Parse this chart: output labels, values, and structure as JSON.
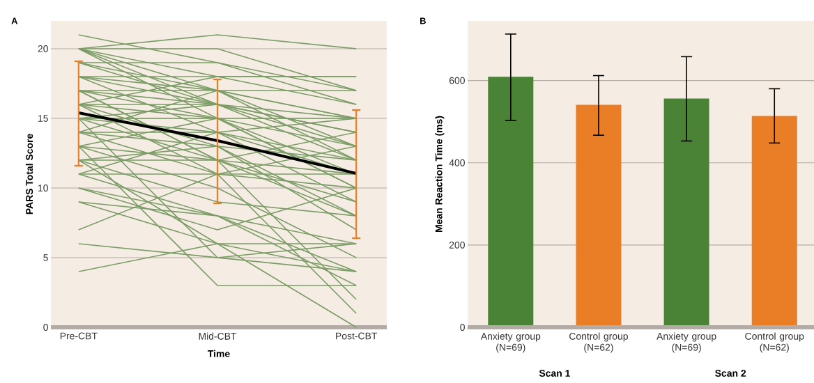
{
  "chart_data": [
    {
      "type": "line",
      "title": "A",
      "xlabel": "Time",
      "ylabel": "PARS Total Score",
      "categories": [
        "Pre-CBT",
        "Mid-CBT",
        "Post-CBT"
      ],
      "ylim": [
        0,
        22
      ],
      "yticks": [
        0,
        5,
        10,
        15,
        20
      ],
      "grid": "y",
      "series": [
        {
          "color": "#7b9c66",
          "values": [
            21,
            19,
            16
          ]
        },
        {
          "color": "#7b9c66",
          "values": [
            20,
            21,
            20
          ]
        },
        {
          "color": "#7b9c66",
          "values": [
            20,
            20,
            17
          ]
        },
        {
          "color": "#7b9c66",
          "values": [
            20,
            18,
            18
          ]
        },
        {
          "color": "#7b9c66",
          "values": [
            20,
            16,
            14
          ]
        },
        {
          "color": "#7b9c66",
          "values": [
            20,
            17,
            12
          ]
        },
        {
          "color": "#7b9c66",
          "values": [
            20,
            15,
            10
          ]
        },
        {
          "color": "#7b9c66",
          "values": [
            19,
            19,
            17
          ]
        },
        {
          "color": "#7b9c66",
          "values": [
            19,
            16,
            15
          ]
        },
        {
          "color": "#7b9c66",
          "values": [
            19,
            17,
            13
          ]
        },
        {
          "color": "#7b9c66",
          "values": [
            18,
            18,
            18
          ]
        },
        {
          "color": "#7b9c66",
          "values": [
            18,
            17,
            15
          ]
        },
        {
          "color": "#7b9c66",
          "values": [
            18,
            16,
            12
          ]
        },
        {
          "color": "#7b9c66",
          "values": [
            18,
            14,
            9
          ]
        },
        {
          "color": "#7b9c66",
          "values": [
            17,
            17,
            15
          ]
        },
        {
          "color": "#7b9c66",
          "values": [
            17,
            16,
            14
          ]
        },
        {
          "color": "#7b9c66",
          "values": [
            17,
            15,
            11
          ]
        },
        {
          "color": "#7b9c66",
          "values": [
            17,
            12,
            8
          ]
        },
        {
          "color": "#7b9c66",
          "values": [
            16,
            18,
            16
          ]
        },
        {
          "color": "#7b9c66",
          "values": [
            16,
            16,
            13
          ]
        },
        {
          "color": "#7b9c66",
          "values": [
            16,
            15,
            10
          ]
        },
        {
          "color": "#7b9c66",
          "values": [
            16,
            13,
            7
          ]
        },
        {
          "color": "#7b9c66",
          "values": [
            15,
            16,
            14
          ]
        },
        {
          "color": "#7b9c66",
          "values": [
            15,
            15,
            15
          ]
        },
        {
          "color": "#7b9c66",
          "values": [
            15,
            14,
            12
          ]
        },
        {
          "color": "#7b9c66",
          "values": [
            15,
            5,
            6
          ]
        },
        {
          "color": "#7b9c66",
          "values": [
            15,
            12,
            9
          ]
        },
        {
          "color": "#7b9c66",
          "values": [
            14,
            17,
            17
          ]
        },
        {
          "color": "#7b9c66",
          "values": [
            14,
            14,
            11
          ]
        },
        {
          "color": "#7b9c66",
          "values": [
            14,
            13,
            8
          ]
        },
        {
          "color": "#7b9c66",
          "values": [
            14,
            11,
            10
          ]
        },
        {
          "color": "#7b9c66",
          "values": [
            13,
            15,
            13
          ]
        },
        {
          "color": "#7b9c66",
          "values": [
            13,
            12,
            11
          ]
        },
        {
          "color": "#7b9c66",
          "values": [
            13,
            10,
            5
          ]
        },
        {
          "color": "#7b9c66",
          "values": [
            12,
            12,
            14
          ]
        },
        {
          "color": "#7b9c66",
          "values": [
            12,
            13,
            12
          ]
        },
        {
          "color": "#7b9c66",
          "values": [
            12,
            9,
            8
          ]
        },
        {
          "color": "#7b9c66",
          "values": [
            11,
            11,
            11
          ]
        },
        {
          "color": "#7b9c66",
          "values": [
            11,
            14,
            15
          ]
        },
        {
          "color": "#7b9c66",
          "values": [
            11,
            8,
            4
          ]
        },
        {
          "color": "#7b9c66",
          "values": [
            10,
            8,
            6
          ]
        },
        {
          "color": "#7b9c66",
          "values": [
            10,
            7,
            10
          ]
        },
        {
          "color": "#7b9c66",
          "values": [
            9,
            8,
            3
          ]
        },
        {
          "color": "#7b9c66",
          "values": [
            9,
            6,
            4
          ]
        },
        {
          "color": "#7b9c66",
          "values": [
            7,
            11,
            13
          ]
        },
        {
          "color": "#7b9c66",
          "values": [
            6,
            5,
            4
          ]
        },
        {
          "color": "#7b9c66",
          "values": [
            4,
            6,
            6
          ]
        },
        {
          "color": "#7b9c66",
          "values": [
            13,
            3,
            3
          ]
        },
        {
          "color": "#7b9c66",
          "values": [
            16,
            11,
            1
          ]
        },
        {
          "color": "#7b9c66",
          "values": [
            12,
            6,
            0
          ]
        },
        {
          "color": "#7b9c66",
          "values": [
            17,
            12,
            2
          ]
        },
        {
          "color": "#000000",
          "values": [
            15.4,
            13.4,
            11.05
          ],
          "errors": [
            [
              11.6,
              19.1
            ],
            [
              8.9,
              17.8
            ],
            [
              6.4,
              15.6
            ]
          ]
        }
      ]
    },
    {
      "type": "bar",
      "title": "B",
      "ylabel": "Mean Reaction Time (ms)",
      "categories": [
        "Anxiety group (N=69)",
        "Control group (N=62)",
        "Anxiety group (N=69)",
        "Control group (N=62)"
      ],
      "values": [
        609,
        541,
        556,
        514
      ],
      "colors": [
        "#4a8236",
        "#e97e26",
        "#4a8236",
        "#e97e26"
      ],
      "errors": [
        [
          503,
          713
        ],
        [
          467,
          612
        ],
        [
          453,
          658
        ],
        [
          448,
          580
        ]
      ],
      "ylim": [
        0,
        745
      ],
      "yticks": [
        0,
        200,
        400,
        600
      ],
      "grid": "y",
      "annotations": [
        "Scan 1",
        "Scan 2"
      ]
    }
  ]
}
